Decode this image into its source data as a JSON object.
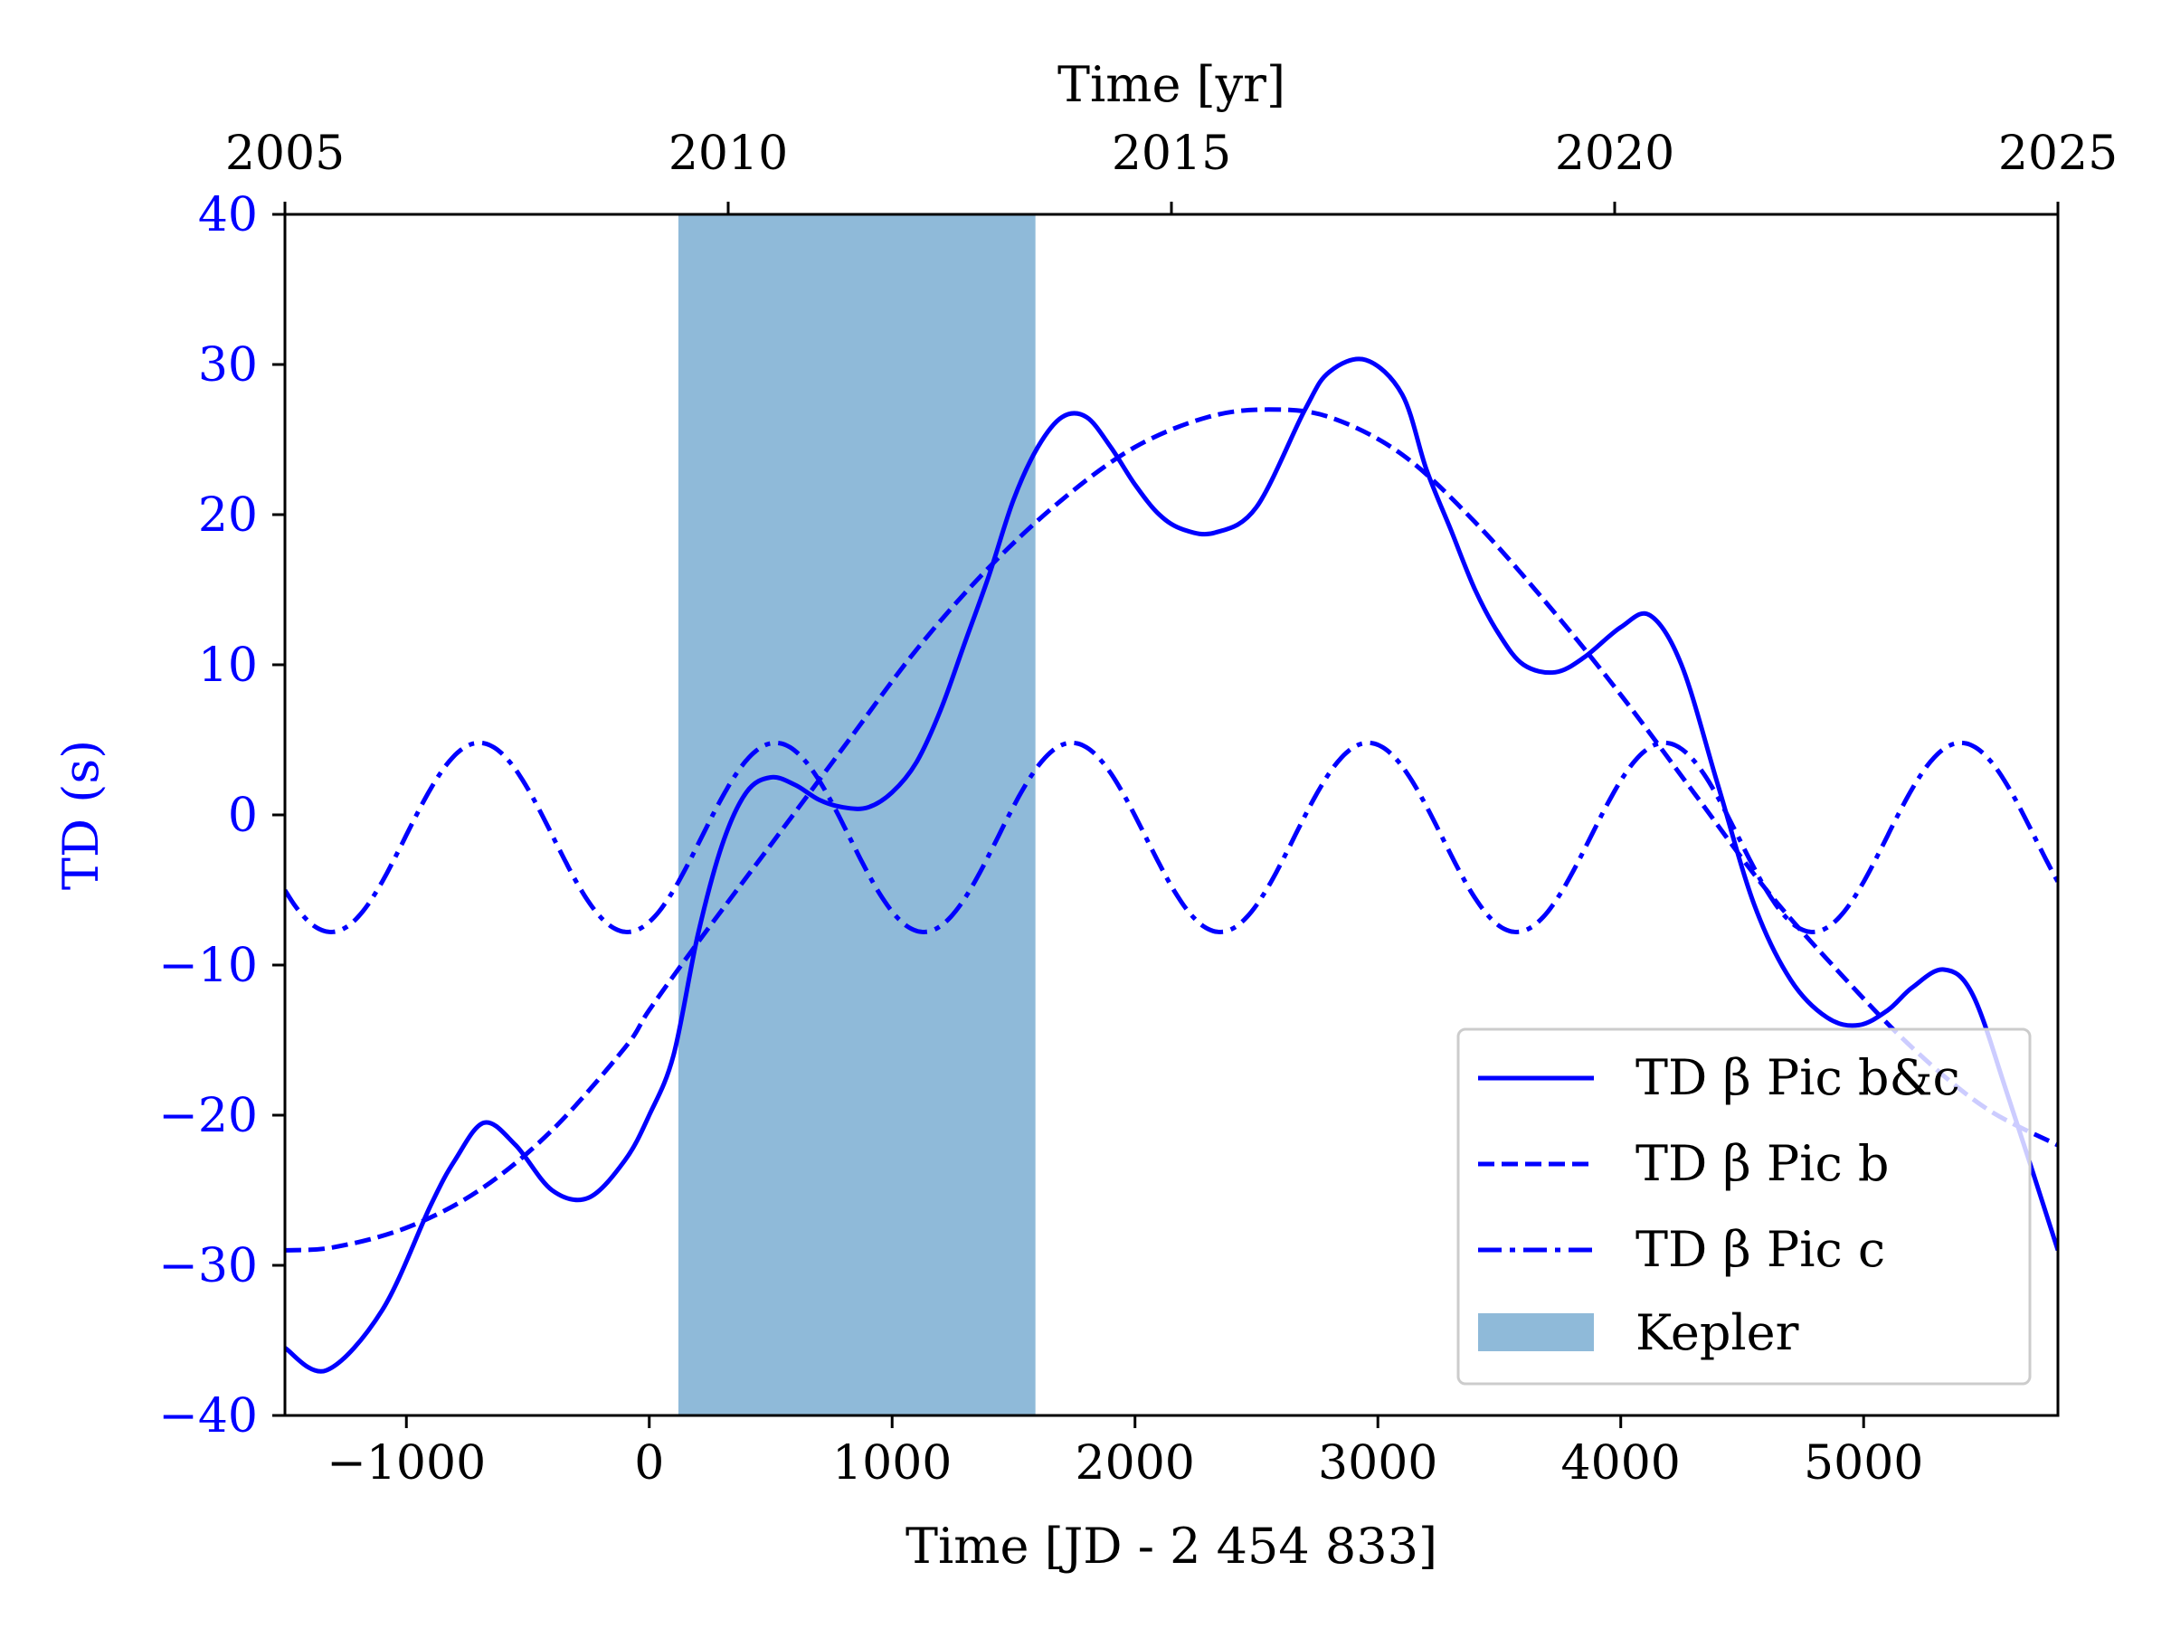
{
  "chart_data": {
    "type": "line",
    "xlabel": "Time [JD - 2 454 833]",
    "x2label": "Time [yr]",
    "ylabel": "TD (s)",
    "xlim": [
      -1500,
      5800
    ],
    "ylim": [
      -40,
      40
    ],
    "x2lim": [
      2005,
      2025
    ],
    "xticks": [
      -1000,
      0,
      1000,
      2000,
      3000,
      4000,
      5000
    ],
    "xtick_labels": [
      "−1000",
      "0",
      "1000",
      "2000",
      "3000",
      "4000",
      "5000"
    ],
    "x2ticks": [
      2005,
      2010,
      2015,
      2020,
      2025
    ],
    "x2tick_labels": [
      "2005",
      "2010",
      "2015",
      "2020",
      "2025"
    ],
    "yticks": [
      -40,
      -30,
      -20,
      -10,
      0,
      10,
      20,
      30,
      40
    ],
    "ytick_labels": [
      "−40",
      "−30",
      "−20",
      "−10",
      "0",
      "10",
      "20",
      "30",
      "40"
    ],
    "colors": {
      "line": "#0000ff",
      "ylabel": "#0000ff",
      "kepler_fill": "#8fbad9",
      "axes": "#000000"
    },
    "legend_position": "lower-right",
    "kepler": {
      "name": "Kepler",
      "x_start": 120,
      "x_end": 1590
    },
    "series": [
      {
        "name": "TD β Pic b&c",
        "style": "solid",
        "x": [
          -1500,
          -1330,
          -1100,
          -900,
          -800,
          -680,
          -550,
          -400,
          -250,
          -100,
          0,
          100,
          200,
          300,
          400,
          500,
          600,
          700,
          800,
          900,
          1000,
          1100,
          1200,
          1300,
          1400,
          1500,
          1600,
          1700,
          1800,
          1900,
          2000,
          2100,
          2200,
          2330,
          2500,
          2700,
          2800,
          2950,
          3100,
          3200,
          3300,
          3400,
          3500,
          3600,
          3730,
          3850,
          4000,
          4120,
          4250,
          4400,
          4550,
          4700,
          4850,
          4980,
          5100,
          5200,
          5330,
          5450,
          5600,
          5800
        ],
        "y": [
          -35.5,
          -37,
          -33,
          -26,
          -23,
          -20.5,
          -22,
          -25,
          -25.5,
          -23,
          -20,
          -16,
          -8,
          -2,
          1.5,
          2.5,
          2,
          1,
          0.5,
          0.5,
          1.5,
          3.5,
          7,
          11.5,
          16,
          21,
          24.5,
          26.5,
          26.5,
          24.5,
          22,
          20,
          19,
          18.8,
          20.5,
          27,
          29.5,
          30.3,
          28,
          23,
          19,
          15,
          12,
          10,
          9.5,
          10.5,
          12.5,
          13.3,
          10,
          2,
          -6,
          -11,
          -13.5,
          -14,
          -13,
          -11.5,
          -10.3,
          -12,
          -19,
          -29
        ]
      },
      {
        "name": "TD β Pic b",
        "style": "dashed",
        "x": [
          -1500,
          -1300,
          -1000,
          -700,
          -400,
          -100,
          0,
          200,
          500,
          800,
          1100,
          1400,
          1700,
          2000,
          2300,
          2550,
          2800,
          3100,
          3400,
          3700,
          4000,
          4300,
          4600,
          4900,
          5200,
          5500,
          5800
        ],
        "y": [
          -29,
          -28.8,
          -27.5,
          -25,
          -21,
          -15.5,
          -13,
          -8.5,
          -2,
          4.5,
          11,
          16.5,
          21,
          24.5,
          26.5,
          27,
          26.5,
          24,
          19.5,
          14,
          8,
          1.5,
          -5,
          -10.5,
          -15.5,
          -19.5,
          -22
        ]
      },
      {
        "name": "TD β Pic c",
        "style": "dashdot",
        "period": 1220,
        "peak_x": 520,
        "amplitude": 6.3,
        "offset": -1.5,
        "x_range": [
          -1500,
          5800
        ]
      }
    ]
  }
}
